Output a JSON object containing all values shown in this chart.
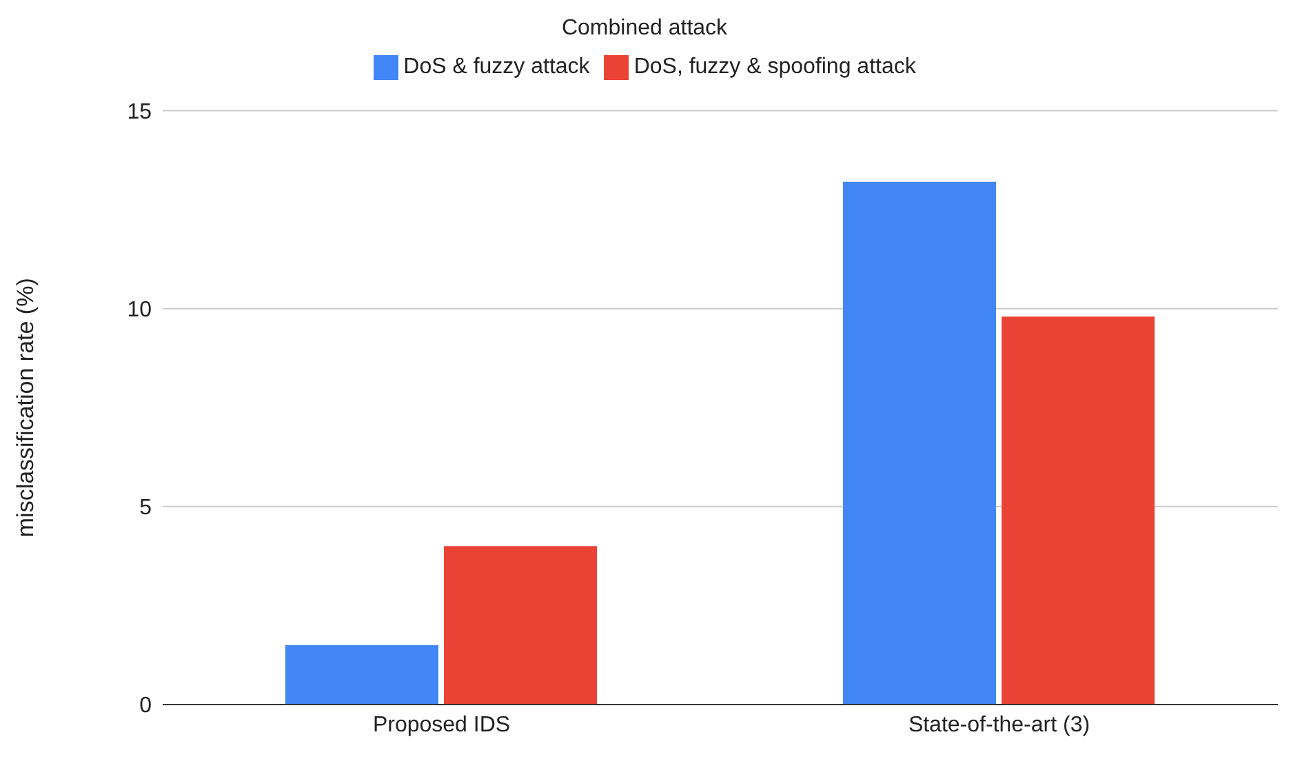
{
  "chart_data": {
    "type": "bar",
    "title": "Combined attack",
    "ylabel": "misclassification rate (%)",
    "categories": [
      "Proposed IDS",
      "State-of-the-art (3)"
    ],
    "series": [
      {
        "name": "DoS & fuzzy attack",
        "color": "#4285f4",
        "values": [
          1.5,
          13.2
        ]
      },
      {
        "name": "DoS, fuzzy & spoofing attack",
        "color": "#ea4335",
        "values": [
          4.0,
          9.8
        ]
      }
    ],
    "ylim": [
      0,
      15
    ],
    "yticks": [
      0,
      5,
      10,
      15
    ],
    "grid": "y",
    "legend": "top"
  }
}
